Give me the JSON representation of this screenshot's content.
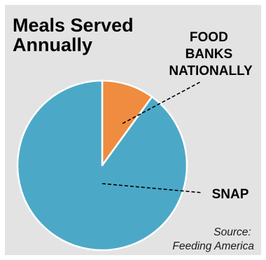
{
  "chart_data": {
    "type": "pie",
    "title_lines": [
      "Meals Served",
      "Annually"
    ],
    "slices": [
      {
        "label_lines": [
          "FOOD",
          "BANKS",
          "NATIONALLY"
        ],
        "value": 10,
        "color": "#ef8c3f"
      },
      {
        "label_lines": [
          "SNAP"
        ],
        "value": 90,
        "color": "#4ba9c7"
      }
    ],
    "source_lines": [
      "Source:",
      "Feeding America"
    ],
    "background_color": "#e3e3e3",
    "slice_border_color": "#ffffff"
  }
}
